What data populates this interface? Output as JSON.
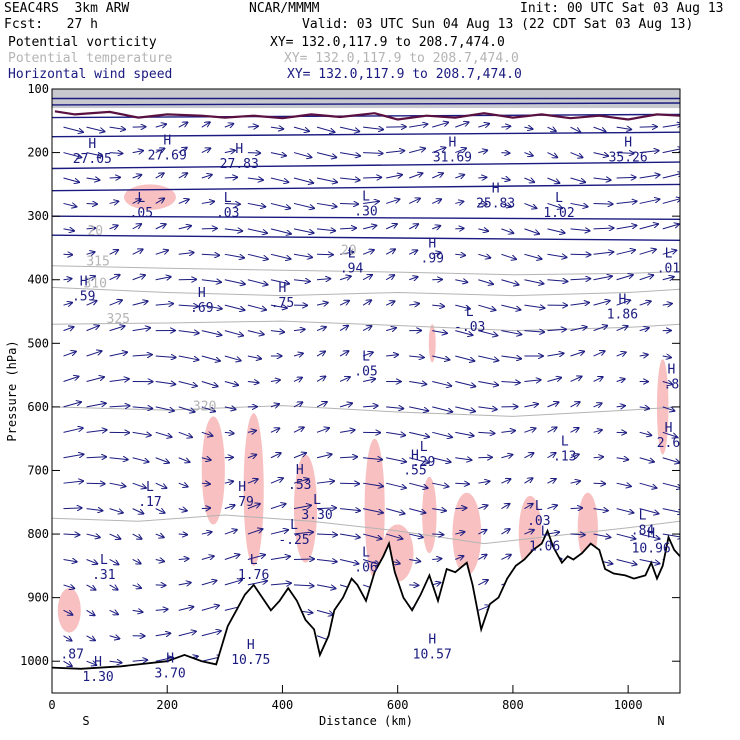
{
  "header": {
    "model": "SEAC4RS  3km ARW",
    "center": "NCAR/MMMM",
    "init": "Init: 00 UTC Sat 03 Aug 13",
    "fcst": "Fcst:   27 h",
    "valid": "Valid: 03 UTC Sun 04 Aug 13 (22 CDT Sat 03 Aug 13)",
    "fields": [
      {
        "name": "Potential vorticity",
        "xy": "XY= 132.0,117.9 to 208.7,474.0",
        "color": "#000000"
      },
      {
        "name": "Potential temperature",
        "xy": "XY= 132.0,117.9 to 208.7,474.0",
        "color": "#b4b4b4"
      },
      {
        "name": "Horizontal wind speed",
        "xy": "XY= 132.0,117.9 to 208.7,474.0",
        "color": "#1a1a80"
      }
    ]
  },
  "chart_data": {
    "type": "cross-section",
    "xlabel": "Distance (km)",
    "ylabel": "Pressure (hPa)",
    "xlim": [
      0,
      1090
    ],
    "ylim": [
      1050,
      100
    ],
    "x_ticks": [
      0,
      200,
      400,
      600,
      800,
      1000
    ],
    "y_ticks": [
      100,
      200,
      300,
      400,
      500,
      600,
      700,
      800,
      900,
      1000
    ],
    "left_end_label": "S",
    "right_end_label": "N",
    "colors": {
      "pv_shading": "#f8c0c0",
      "wind": "#1a1a80",
      "theta": "#b4b4b4",
      "pv_contour": "#5a1040",
      "terrain": "#000000"
    },
    "theta_contours": [
      {
        "label": "325",
        "x": 115,
        "p": 468
      },
      {
        "label": "320",
        "x": 265,
        "p": 606
      },
      {
        "label": "315",
        "x": 80,
        "p": 378
      },
      {
        "label": "310",
        "x": 75,
        "p": 412
      },
      {
        "label": "20",
        "x": 75,
        "p": 330
      },
      {
        "label": "20",
        "x": 515,
        "p": 360
      }
    ],
    "extrema_labels": [
      {
        "label": "H",
        "value": "27.05",
        "x": 70,
        "p": 205
      },
      {
        "label": "H",
        "value": "27.69",
        "x": 200,
        "p": 200
      },
      {
        "label": "H",
        "value": "27.83",
        "x": 325,
        "p": 213
      },
      {
        "label": "H",
        "value": "31.69",
        "x": 695,
        "p": 203
      },
      {
        "label": "H",
        "value": "35.26",
        "x": 1000,
        "p": 203
      },
      {
        "label": "H",
        "value": "25.83",
        "x": 770,
        "p": 275
      },
      {
        "label": "L",
        "value": ".05",
        "x": 155,
        "p": 290
      },
      {
        "label": "L",
        "value": ".03",
        "x": 305,
        "p": 290
      },
      {
        "label": "L",
        "value": ".30",
        "x": 545,
        "p": 288
      },
      {
        "label": "L",
        "value": "1.02",
        "x": 880,
        "p": 290
      },
      {
        "label": "L",
        "value": ".94",
        "x": 520,
        "p": 378
      },
      {
        "label": "H",
        "value": ".99",
        "x": 660,
        "p": 362
      },
      {
        "label": "L",
        "value": ".01",
        "x": 1070,
        "p": 378
      },
      {
        "label": "H",
        "value": ".59",
        "x": 55,
        "p": 422
      },
      {
        "label": "H",
        "value": ".69",
        "x": 260,
        "p": 440
      },
      {
        "label": "H",
        "value": ".75",
        "x": 400,
        "p": 432
      },
      {
        "label": "H",
        "value": "1.86",
        "x": 990,
        "p": 450
      },
      {
        "label": "L",
        "value": "-.03",
        "x": 725,
        "p": 470
      },
      {
        "label": "L",
        "value": ".05",
        "x": 545,
        "p": 540
      },
      {
        "label": "H",
        "value": ".8",
        "x": 1075,
        "p": 560
      },
      {
        "label": "L",
        "value": ".29",
        "x": 645,
        "p": 682
      },
      {
        "label": "H",
        "value": ".55",
        "x": 630,
        "p": 695
      },
      {
        "label": "L",
        "value": ".13",
        "x": 890,
        "p": 673
      },
      {
        "label": "H",
        "value": "2.6",
        "x": 1070,
        "p": 652
      },
      {
        "label": "L",
        "value": ".17",
        "x": 170,
        "p": 745
      },
      {
        "label": "H",
        "value": ".79",
        "x": 330,
        "p": 745
      },
      {
        "label": "H",
        "value": ".53",
        "x": 430,
        "p": 718
      },
      {
        "label": "L",
        "value": "3.30",
        "x": 460,
        "p": 765
      },
      {
        "label": "L",
        "value": "-.25",
        "x": 420,
        "p": 805
      },
      {
        "label": "L",
        "value": ".03",
        "x": 845,
        "p": 775
      },
      {
        "label": "L",
        "value": "1.06",
        "x": 855,
        "p": 815
      },
      {
        "label": "L",
        "value": ".84",
        "x": 1025,
        "p": 790
      },
      {
        "label": "H",
        "value": "10.96",
        "x": 1040,
        "p": 818
      },
      {
        "label": "L",
        "value": ".31",
        "x": 90,
        "p": 860
      },
      {
        "label": "L",
        "value": "1.76",
        "x": 350,
        "p": 860
      },
      {
        "label": "L",
        "value": ".06",
        "x": 545,
        "p": 848
      },
      {
        "label": "H",
        "value": "10.75",
        "x": 345,
        "p": 993
      },
      {
        "label": "H",
        "value": "10.57",
        "x": 660,
        "p": 985
      },
      {
        "label": "H",
        "value": "3.70",
        "x": 205,
        "p": 1015
      },
      {
        "label": "",
        "value": ".87",
        "x": 35,
        "p": 985
      },
      {
        "label": "H",
        "value": "1.30",
        "x": 80,
        "p": 1020
      }
    ],
    "terrain": [
      [
        0,
        1010
      ],
      [
        50,
        1012
      ],
      [
        120,
        1008
      ],
      [
        200,
        1000
      ],
      [
        230,
        990
      ],
      [
        260,
        1000
      ],
      [
        285,
        1005
      ],
      [
        295,
        975
      ],
      [
        305,
        945
      ],
      [
        320,
        920
      ],
      [
        335,
        895
      ],
      [
        350,
        880
      ],
      [
        365,
        900
      ],
      [
        380,
        920
      ],
      [
        395,
        905
      ],
      [
        410,
        885
      ],
      [
        425,
        905
      ],
      [
        440,
        935
      ],
      [
        455,
        950
      ],
      [
        465,
        990
      ],
      [
        480,
        960
      ],
      [
        490,
        920
      ],
      [
        505,
        900
      ],
      [
        520,
        870
      ],
      [
        530,
        880
      ],
      [
        545,
        905
      ],
      [
        560,
        860
      ],
      [
        575,
        835
      ],
      [
        585,
        815
      ],
      [
        595,
        860
      ],
      [
        610,
        900
      ],
      [
        625,
        920
      ],
      [
        640,
        895
      ],
      [
        655,
        865
      ],
      [
        670,
        905
      ],
      [
        685,
        855
      ],
      [
        700,
        860
      ],
      [
        720,
        845
      ],
      [
        730,
        880
      ],
      [
        745,
        950
      ],
      [
        760,
        910
      ],
      [
        775,
        900
      ],
      [
        790,
        870
      ],
      [
        805,
        850
      ],
      [
        820,
        840
      ],
      [
        835,
        825
      ],
      [
        850,
        815
      ],
      [
        860,
        795
      ],
      [
        870,
        820
      ],
      [
        885,
        845
      ],
      [
        895,
        835
      ],
      [
        905,
        840
      ],
      [
        920,
        830
      ],
      [
        935,
        815
      ],
      [
        950,
        825
      ],
      [
        960,
        855
      ],
      [
        975,
        862
      ],
      [
        995,
        865
      ],
      [
        1010,
        870
      ],
      [
        1030,
        865
      ],
      [
        1040,
        845
      ],
      [
        1050,
        870
      ],
      [
        1060,
        850
      ],
      [
        1070,
        805
      ],
      [
        1080,
        825
      ],
      [
        1090,
        835
      ]
    ],
    "tropopause_pv2": [
      [
        5,
        135
      ],
      [
        40,
        140
      ],
      [
        100,
        136
      ],
      [
        150,
        145
      ],
      [
        200,
        140
      ],
      [
        260,
        142
      ],
      [
        300,
        145
      ],
      [
        350,
        142
      ],
      [
        400,
        146
      ],
      [
        450,
        140
      ],
      [
        500,
        144
      ],
      [
        560,
        138
      ],
      [
        600,
        148
      ],
      [
        650,
        142
      ],
      [
        700,
        145
      ],
      [
        750,
        138
      ],
      [
        800,
        145
      ],
      [
        850,
        140
      ],
      [
        900,
        146
      ],
      [
        950,
        142
      ],
      [
        1000,
        148
      ],
      [
        1050,
        140
      ],
      [
        1090,
        142
      ]
    ],
    "blue_contours": [
      [
        [
          0,
          115
        ],
        [
          1090,
          115
        ]
      ],
      [
        [
          0,
          125
        ],
        [
          1090,
          122
        ]
      ],
      [
        [
          0,
          145
        ],
        [
          1090,
          140
        ]
      ],
      [
        [
          0,
          175
        ],
        [
          1090,
          168
        ]
      ],
      [
        [
          0,
          225
        ],
        [
          1090,
          215
        ]
      ],
      [
        [
          0,
          260
        ],
        [
          1090,
          250
        ]
      ],
      [
        [
          0,
          300
        ],
        [
          1090,
          305
        ]
      ],
      [
        [
          0,
          330
        ],
        [
          1090,
          338
        ]
      ]
    ],
    "theta_lines": [
      [
        [
          0,
          378
        ],
        [
          200,
          382
        ],
        [
          400,
          385
        ],
        [
          600,
          388
        ],
        [
          800,
          392
        ],
        [
          1000,
          390
        ],
        [
          1090,
          387
        ]
      ],
      [
        [
          0,
          412
        ],
        [
          200,
          420
        ],
        [
          400,
          425
        ],
        [
          600,
          420
        ],
        [
          800,
          425
        ],
        [
          1000,
          420
        ],
        [
          1090,
          415
        ]
      ],
      [
        [
          0,
          470
        ],
        [
          200,
          468
        ],
        [
          400,
          465
        ],
        [
          600,
          472
        ],
        [
          800,
          480
        ],
        [
          1000,
          475
        ],
        [
          1090,
          470
        ]
      ],
      [
        [
          0,
          600
        ],
        [
          200,
          605
        ],
        [
          400,
          598
        ],
        [
          600,
          608
        ],
        [
          800,
          615
        ],
        [
          1000,
          605
        ],
        [
          1090,
          600
        ]
      ],
      [
        [
          0,
          775
        ],
        [
          150,
          780
        ],
        [
          300,
          770
        ],
        [
          450,
          780
        ],
        [
          600,
          795
        ],
        [
          750,
          815
        ],
        [
          900,
          800
        ],
        [
          1000,
          790
        ],
        [
          1090,
          780
        ]
      ]
    ],
    "pv_patches": [
      {
        "x": 280,
        "p": 700,
        "w": 40,
        "h": 170
      },
      {
        "x": 350,
        "p": 730,
        "w": 35,
        "h": 240
      },
      {
        "x": 440,
        "p": 760,
        "w": 40,
        "h": 170
      },
      {
        "x": 560,
        "p": 760,
        "w": 35,
        "h": 220
      },
      {
        "x": 600,
        "p": 830,
        "w": 55,
        "h": 90
      },
      {
        "x": 655,
        "p": 770,
        "w": 25,
        "h": 120
      },
      {
        "x": 720,
        "p": 800,
        "w": 50,
        "h": 130
      },
      {
        "x": 830,
        "p": 800,
        "w": 40,
        "h": 120
      },
      {
        "x": 930,
        "p": 790,
        "w": 35,
        "h": 110
      },
      {
        "x": 30,
        "p": 920,
        "w": 40,
        "h": 70
      },
      {
        "x": 170,
        "p": 270,
        "w": 90,
        "h": 40
      },
      {
        "x": 660,
        "p": 500,
        "w": 12,
        "h": 60
      },
      {
        "x": 1060,
        "p": 600,
        "w": 20,
        "h": 150
      }
    ]
  }
}
